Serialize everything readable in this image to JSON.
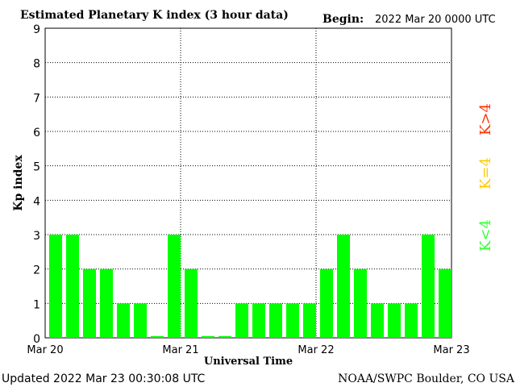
{
  "header": {
    "title": "Estimated Planetary K index (3 hour data)",
    "begin_label": "Begin:",
    "begin_value": "2022 Mar 20 0000 UTC"
  },
  "footer": {
    "updated": "Updated 2022 Mar 23 00:30:08 UTC",
    "source": "NOAA/SWPC Boulder, CO USA"
  },
  "legend": [
    {
      "label": "K<4",
      "color": "#33ff33"
    },
    {
      "label": "K=4",
      "color": "#ffcc00"
    },
    {
      "label": "K>4",
      "color": "#ff3300"
    }
  ],
  "chart_data": {
    "type": "bar",
    "title": "Estimated Planetary K index (3 hour data)",
    "xlabel": "Universal Time",
    "ylabel": "Kp index",
    "ylim": [
      0,
      9
    ],
    "yticks": [
      "0",
      "1",
      "2",
      "3",
      "4",
      "5",
      "6",
      "7",
      "8",
      "9"
    ],
    "xticks": [
      "Mar 20",
      "Mar 21",
      "Mar 22",
      "Mar 23"
    ],
    "grid": true,
    "bar_color": "#00ff00",
    "values": [
      3,
      3,
      2,
      2,
      1,
      1,
      0.05,
      3,
      2,
      0.05,
      0.05,
      1,
      1,
      1,
      1,
      1,
      2,
      3,
      2,
      1,
      1,
      1,
      3,
      2
    ]
  }
}
